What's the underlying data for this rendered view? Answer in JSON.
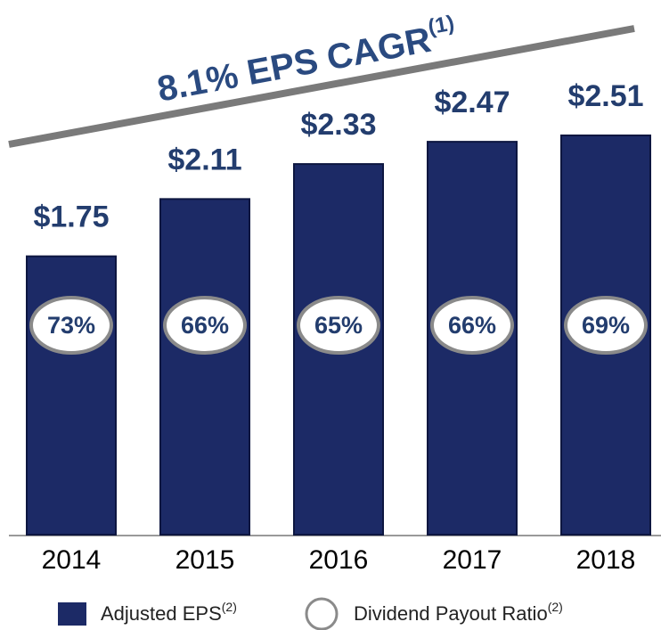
{
  "chart_data": {
    "type": "bar",
    "title": "8.1% EPS CAGR",
    "title_superscript": "(1)",
    "categories": [
      "2014",
      "2015",
      "2016",
      "2017",
      "2018"
    ],
    "ylim": [
      0,
      3
    ],
    "series": [
      {
        "name": "Adjusted EPS",
        "name_superscript": "(2)",
        "color": "#1c2a66",
        "values": [
          1.75,
          2.11,
          2.33,
          2.47,
          2.51
        ],
        "value_labels": [
          "$1.75",
          "$2.11",
          "$2.33",
          "$2.47",
          "$2.51"
        ]
      },
      {
        "name": "Dividend Payout Ratio",
        "name_superscript": "(2)",
        "color": "#8a8a8a",
        "values": [
          73,
          66,
          65,
          66,
          69
        ],
        "value_labels": [
          "73%",
          "66%",
          "65%",
          "66%",
          "69%"
        ]
      }
    ]
  }
}
